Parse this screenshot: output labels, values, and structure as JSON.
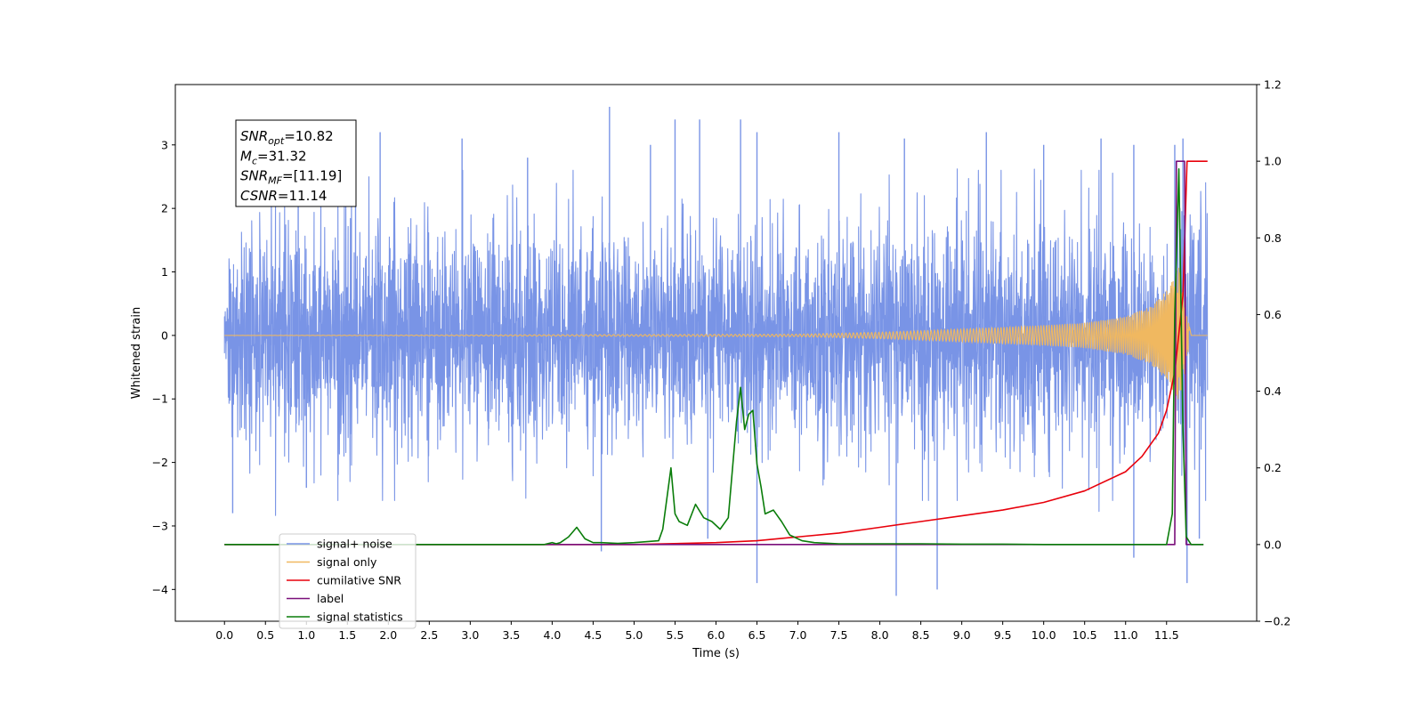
{
  "chart_data": {
    "type": "line",
    "xlabel": "Time (s)",
    "ylabel": "Whitened strain",
    "xlim": [
      -0.6,
      12.6
    ],
    "ylim": [
      -4.5,
      3.95
    ],
    "y2lim": [
      -0.2,
      1.2
    ],
    "x_ticks": [
      0.0,
      0.5,
      1.0,
      1.5,
      2.0,
      2.5,
      3.0,
      3.5,
      4.0,
      4.5,
      5.0,
      5.5,
      6.0,
      6.5,
      7.0,
      7.5,
      8.0,
      8.5,
      9.0,
      9.5,
      10.0,
      10.5,
      11.0,
      11.5
    ],
    "y_ticks": [
      -4,
      -3,
      -2,
      -1,
      0,
      1,
      2,
      3
    ],
    "y2_ticks": [
      -0.2,
      0.0,
      0.2,
      0.4,
      0.6,
      0.8,
      1.0,
      1.2
    ],
    "grid": false,
    "legend_position": "lower-left",
    "annotation": [
      {
        "base": "SNR",
        "sub": "opt",
        "value": "=10.82"
      },
      {
        "base": "M",
        "sub": "c",
        "value": "=31.32"
      },
      {
        "base": "SNR",
        "sub": "MF",
        "value": "=[11.19]"
      },
      {
        "base": "CSNR",
        "sub": "",
        "value": "=11.14"
      }
    ],
    "series": [
      {
        "name": "signal+ noise",
        "color": "#7994e6",
        "axis": "left",
        "description": "dense noise band roughly -2.5 to 2.5 with spikes",
        "x_range": [
          0.0,
          12.0
        ],
        "typical_envelope": [
          -2.0,
          2.0
        ],
        "spikes": [
          [
            0.1,
            -2.8
          ],
          [
            0.9,
            2.7
          ],
          [
            1.0,
            -2.4
          ],
          [
            1.6,
            2.9
          ],
          [
            1.9,
            3.2
          ],
          [
            2.9,
            3.1
          ],
          [
            3.7,
            2.8
          ],
          [
            4.6,
            -3.4
          ],
          [
            4.7,
            3.6
          ],
          [
            5.2,
            3.0
          ],
          [
            5.5,
            3.4
          ],
          [
            5.8,
            3.4
          ],
          [
            5.9,
            -3.2
          ],
          [
            6.3,
            3.4
          ],
          [
            6.5,
            3.2
          ],
          [
            6.5,
            -3.9
          ],
          [
            7.5,
            3.2
          ],
          [
            8.2,
            -4.1
          ],
          [
            8.3,
            3.1
          ],
          [
            8.7,
            -4.0
          ],
          [
            9.3,
            3.2
          ],
          [
            10.0,
            3.0
          ],
          [
            10.7,
            3.1
          ],
          [
            11.1,
            3.0
          ],
          [
            11.1,
            -3.5
          ],
          [
            11.6,
            3.0
          ],
          [
            11.7,
            3.1
          ],
          [
            11.75,
            -3.9
          ],
          [
            11.9,
            -3.2
          ]
        ]
      },
      {
        "name": "signal only",
        "color": "#f0b860",
        "axis": "left",
        "description": "chirp oscillation growing toward merger",
        "envelope": [
          [
            0.0,
            0.0
          ],
          [
            7.0,
            0.02
          ],
          [
            8.0,
            0.05
          ],
          [
            9.0,
            0.1
          ],
          [
            10.0,
            0.16
          ],
          [
            10.5,
            0.2
          ],
          [
            11.0,
            0.3
          ],
          [
            11.3,
            0.45
          ],
          [
            11.5,
            0.7
          ],
          [
            11.65,
            1.1
          ],
          [
            11.75,
            0.4
          ],
          [
            11.8,
            0.0
          ],
          [
            12.0,
            0.0
          ]
        ]
      },
      {
        "name": "cumilative SNR",
        "color": "#e8000b",
        "axis": "right",
        "x": [
          0.0,
          5.0,
          6.0,
          6.5,
          7.0,
          7.5,
          8.0,
          8.5,
          9.0,
          9.5,
          10.0,
          10.5,
          11.0,
          11.2,
          11.4,
          11.5,
          11.6,
          11.7,
          11.75,
          11.8,
          12.0
        ],
        "y": [
          0.0,
          0.0,
          0.005,
          0.01,
          0.02,
          0.03,
          0.045,
          0.06,
          0.075,
          0.09,
          0.11,
          0.14,
          0.19,
          0.23,
          0.29,
          0.35,
          0.45,
          0.65,
          1.0,
          1.0,
          1.0
        ]
      },
      {
        "name": "label",
        "color": "#7a0f7a",
        "axis": "right",
        "x": [
          0.0,
          11.6,
          11.62,
          11.72,
          11.74,
          11.8,
          11.95
        ],
        "y": [
          0.0,
          0.0,
          1.0,
          1.0,
          0.0,
          0.0,
          0.0
        ]
      },
      {
        "name": "signal statistics",
        "color": "#0a7d0a",
        "axis": "right",
        "x": [
          0.0,
          3.9,
          4.0,
          4.05,
          4.1,
          4.2,
          4.3,
          4.35,
          4.4,
          4.5,
          4.6,
          4.8,
          5.0,
          5.3,
          5.35,
          5.45,
          5.5,
          5.55,
          5.65,
          5.75,
          5.85,
          5.9,
          5.95,
          6.05,
          6.15,
          6.25,
          6.3,
          6.35,
          6.4,
          6.45,
          6.5,
          6.55,
          6.6,
          6.7,
          6.8,
          6.9,
          6.95,
          7.05,
          7.2,
          7.5,
          8.0,
          8.5,
          9.0,
          9.5,
          10.0,
          11.0,
          11.5,
          11.57,
          11.6,
          11.65,
          11.7,
          11.74,
          11.8,
          11.9,
          11.95
        ],
        "y": [
          0.0,
          0.0,
          0.005,
          0.002,
          0.005,
          0.02,
          0.045,
          0.03,
          0.015,
          0.005,
          0.005,
          0.003,
          0.005,
          0.01,
          0.04,
          0.2,
          0.08,
          0.06,
          0.05,
          0.105,
          0.07,
          0.065,
          0.06,
          0.04,
          0.07,
          0.32,
          0.41,
          0.3,
          0.34,
          0.35,
          0.21,
          0.15,
          0.08,
          0.09,
          0.06,
          0.025,
          0.02,
          0.01,
          0.005,
          0.002,
          0.002,
          0.002,
          0.001,
          0.001,
          0.0,
          0.0,
          0.0,
          0.08,
          0.6,
          0.98,
          0.3,
          0.02,
          0.0,
          0.0,
          0.0
        ]
      }
    ]
  }
}
